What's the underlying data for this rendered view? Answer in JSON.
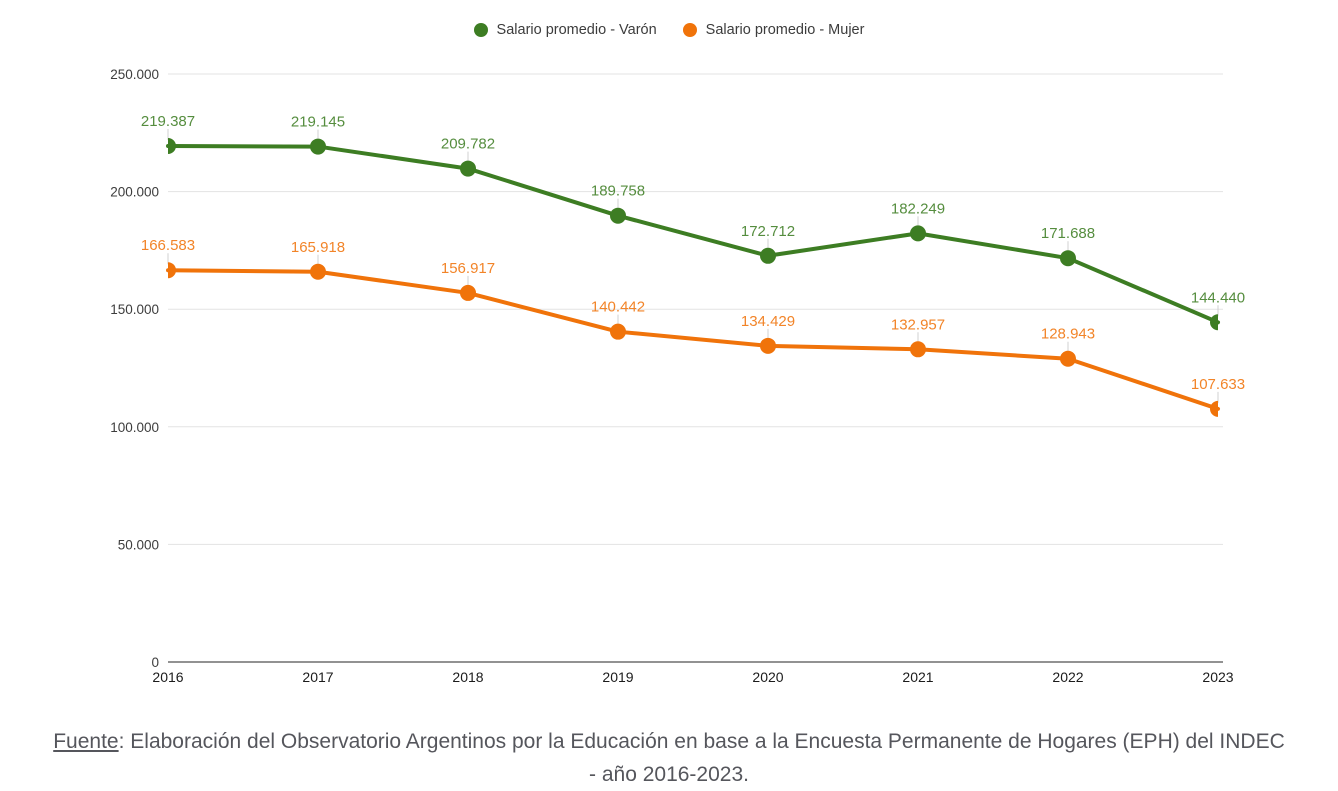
{
  "chart_data": {
    "type": "line",
    "categories": [
      "2016",
      "2017",
      "2018",
      "2019",
      "2020",
      "2021",
      "2022",
      "2023"
    ],
    "series": [
      {
        "name": "Salario promedio - Varón",
        "color": "#3d7d23",
        "values": [
          219387,
          219145,
          209782,
          189758,
          172712,
          182249,
          171688,
          144440
        ]
      },
      {
        "name": "Salario promedio - Mujer",
        "color": "#f0730a",
        "values": [
          166583,
          165918,
          156917,
          140442,
          134429,
          132957,
          128943,
          107633
        ]
      }
    ],
    "title": "",
    "xlabel": "",
    "ylabel": "",
    "ylim": [
      0,
      250000
    ],
    "y_ticks": [
      0,
      50000,
      100000,
      150000,
      200000,
      250000
    ],
    "grid": true,
    "legend_position": "top",
    "data_labels": true,
    "colors": {
      "gridline": "#e3e3e3",
      "axis_line": "#6f6f6f",
      "label_stem": "#d0d0d0"
    }
  },
  "footer": {
    "source_label": "Fuente",
    "line1_rest": ": Elaboración del Observatorio Argentinos por la Educación en base a la Encuesta Permanente de Hogares (EPH) del INDEC",
    "line2": "- año 2016-2023."
  }
}
